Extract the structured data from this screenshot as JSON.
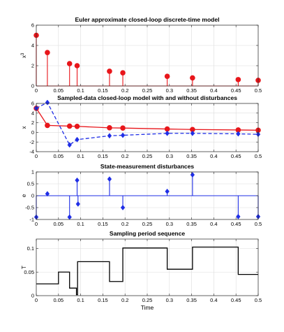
{
  "chart_data": [
    {
      "type": "stem",
      "title": "Euler approximate closed-loop discrete-time model",
      "xlabel": "",
      "ylabel": "x^3",
      "xlim": [
        0,
        0.5
      ],
      "ylim": [
        0,
        6
      ],
      "xticks": [
        "0",
        "0.05",
        "0.1",
        "0.15",
        "0.2",
        "0.25",
        "0.3",
        "0.35",
        "0.4",
        "0.45",
        "0.5"
      ],
      "yticks": [
        "0",
        "2",
        "4",
        "6"
      ],
      "grid": true,
      "series": [
        {
          "color": "#e8161b",
          "marker": "circle",
          "x": [
            0,
            0.025,
            0.075,
            0.092,
            0.165,
            0.195,
            0.295,
            0.352,
            0.455,
            0.5
          ],
          "y": [
            5.0,
            3.3,
            2.2,
            2.0,
            1.45,
            1.3,
            0.95,
            0.8,
            0.63,
            0.56
          ]
        }
      ]
    },
    {
      "type": "line",
      "title": "Sampled-data closed-loop model with and without disturbances",
      "xlabel": "",
      "ylabel": "x",
      "xlim": [
        0,
        0.5
      ],
      "ylim": [
        -4,
        6
      ],
      "xticks": [
        "0",
        "0.05",
        "0.1",
        "0.15",
        "0.2",
        "0.25",
        "0.3",
        "0.35",
        "0.4",
        "0.45",
        "0.5"
      ],
      "yticks": [
        "-4",
        "-2",
        "0",
        "2",
        "4",
        "6"
      ],
      "grid": true,
      "series": [
        {
          "color": "#e8161b",
          "marker": "circle",
          "style": "solid",
          "x": [
            0,
            0.025,
            0.075,
            0.092,
            0.165,
            0.195,
            0.295,
            0.352,
            0.455,
            0.5
          ],
          "y": [
            5.0,
            1.45,
            1.3,
            1.25,
            0.95,
            0.9,
            0.7,
            0.6,
            0.5,
            0.45
          ]
        },
        {
          "color": "#1f2ee6",
          "marker": "diamond",
          "style": "dashed",
          "x": [
            0,
            0.025,
            0.075,
            0.092,
            0.165,
            0.195,
            0.295,
            0.352,
            0.455,
            0.5
          ],
          "y": [
            5.0,
            6.2,
            -2.6,
            -1.5,
            -0.7,
            -0.6,
            -0.2,
            -0.2,
            -0.3,
            -0.4
          ]
        }
      ]
    },
    {
      "type": "stem",
      "title": "State-measurement disturbances",
      "xlabel": "",
      "ylabel": "e",
      "xlim": [
        0,
        0.5
      ],
      "ylim": [
        -1,
        1
      ],
      "xticks": [
        "0",
        "0.05",
        "0.1",
        "0.15",
        "0.2",
        "0.25",
        "0.3",
        "0.35",
        "0.4",
        "0.45",
        "0.5"
      ],
      "yticks": [
        "-1",
        "-0.5",
        "0",
        "0.5",
        "1"
      ],
      "grid": true,
      "series": [
        {
          "color": "#1f2ee6",
          "marker": "diamond",
          "x": [
            0,
            0.025,
            0.075,
            0.092,
            0.094,
            0.165,
            0.195,
            0.295,
            0.352,
            0.455,
            0.5
          ],
          "y": [
            -0.9,
            0.08,
            -0.9,
            0.65,
            -0.35,
            0.7,
            -0.5,
            0.18,
            0.88,
            -0.88,
            -0.88
          ]
        }
      ]
    },
    {
      "type": "stairs",
      "title": "Sampling period sequence",
      "xlabel": "Time",
      "ylabel": "T",
      "xlim": [
        0,
        0.5
      ],
      "ylim": [
        0,
        0.12
      ],
      "xticks": [
        "0",
        "0.05",
        "0.1",
        "0.15",
        "0.2",
        "0.25",
        "0.3",
        "0.35",
        "0.4",
        "0.45",
        "0.5"
      ],
      "yticks": [
        "0",
        "0.05",
        "0.1"
      ],
      "grid": true,
      "series": [
        {
          "color": "#000000",
          "x": [
            0,
            0.025,
            0.05,
            0.075,
            0.0905,
            0.093,
            0.165,
            0.195,
            0.295,
            0.352,
            0.455,
            0.5
          ],
          "y": [
            0.025,
            0.025,
            0.05,
            0.016,
            0.002,
            0.072,
            0.03,
            0.101,
            0.056,
            0.103,
            0.045,
            0.045
          ]
        }
      ]
    }
  ]
}
